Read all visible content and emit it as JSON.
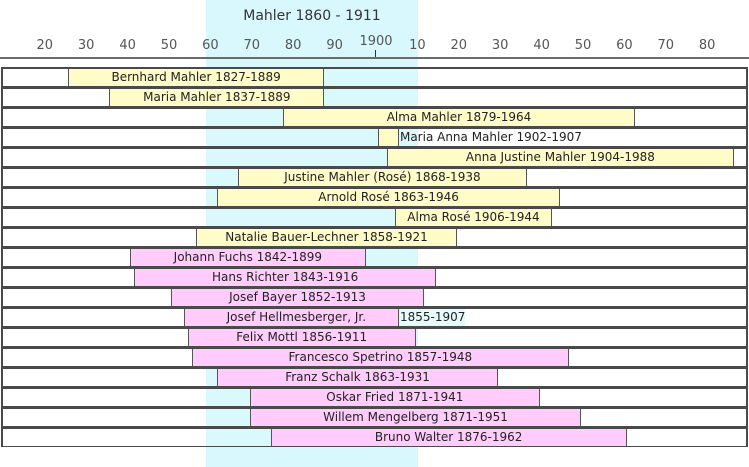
{
  "colors": {
    "highlight_band": "#d9f8fd",
    "family_bar": "#fffcc8",
    "musician_bar": "#ffccfc",
    "row_border": "#4a4a4a"
  },
  "chart_data": {
    "type": "timeline",
    "title": "Mahler  1860 - 1911",
    "highlight": {
      "start": 1860,
      "end": 1911
    },
    "x_range": [
      1811,
      1992
    ],
    "tick_labels": [
      {
        "year": 1820,
        "label": "20"
      },
      {
        "year": 1830,
        "label": "30"
      },
      {
        "year": 1840,
        "label": "40"
      },
      {
        "year": 1850,
        "label": "50"
      },
      {
        "year": 1860,
        "label": "60"
      },
      {
        "year": 1870,
        "label": "70"
      },
      {
        "year": 1880,
        "label": "80"
      },
      {
        "year": 1890,
        "label": "90"
      },
      {
        "year": 1900,
        "label": "1900"
      },
      {
        "year": 1910,
        "label": "10"
      },
      {
        "year": 1920,
        "label": "20"
      },
      {
        "year": 1930,
        "label": "30"
      },
      {
        "year": 1940,
        "label": "40"
      },
      {
        "year": 1950,
        "label": "50"
      },
      {
        "year": 1960,
        "label": "60"
      },
      {
        "year": 1970,
        "label": "70"
      },
      {
        "year": 1980,
        "label": "80"
      }
    ],
    "people": [
      {
        "label": "Bernhard Mahler 1827-1889",
        "start": 1827,
        "end": 1889,
        "group": "family"
      },
      {
        "label": "Maria Mahler 1837-1889",
        "start": 1837,
        "end": 1889,
        "group": "family"
      },
      {
        "label": "Alma Mahler 1879-1964",
        "start": 1879,
        "end": 1964,
        "group": "family"
      },
      {
        "label": "Maria Anna Mahler 1902-1907",
        "start": 1902,
        "end": 1907,
        "group": "family",
        "overflow": true
      },
      {
        "label": "Anna Justine Mahler 1904-1988",
        "start": 1904,
        "end": 1988,
        "group": "family"
      },
      {
        "label": "Justine Mahler (Rosé) 1868-1938",
        "start": 1868,
        "end": 1938,
        "group": "family"
      },
      {
        "label": "Arnold Rosé 1863-1946",
        "start": 1863,
        "end": 1946,
        "group": "family"
      },
      {
        "label": "Alma Rosé 1906-1944",
        "start": 1906,
        "end": 1944,
        "group": "family"
      },
      {
        "label": "Natalie Bauer-Lechner 1858-1921",
        "start": 1858,
        "end": 1921,
        "group": "family"
      },
      {
        "label": "Johann Fuchs 1842-1899",
        "start": 1842,
        "end": 1899,
        "group": "musician"
      },
      {
        "label": "Hans Richter 1843-1916",
        "start": 1843,
        "end": 1916,
        "group": "musician"
      },
      {
        "label": "Josef Bayer 1852-1913",
        "start": 1852,
        "end": 1913,
        "group": "musician"
      },
      {
        "label": "Josef Hellmesberger, Jr.",
        "after_label": "1855-1907",
        "start": 1855,
        "end": 1907,
        "group": "musician"
      },
      {
        "label": "Felix Mottl 1856-1911",
        "start": 1856,
        "end": 1911,
        "group": "musician"
      },
      {
        "label": "Francesco Spetrino 1857-1948",
        "start": 1857,
        "end": 1948,
        "group": "musician"
      },
      {
        "label": "Franz Schalk 1863-1931",
        "start": 1863,
        "end": 1931,
        "group": "musician"
      },
      {
        "label": "Oskar Fried 1871-1941",
        "start": 1871,
        "end": 1941,
        "group": "musician"
      },
      {
        "label": "Willem Mengelberg 1871-1951",
        "start": 1871,
        "end": 1951,
        "group": "musician"
      },
      {
        "label": "Bruno Walter 1876-1962",
        "start": 1876,
        "end": 1962,
        "group": "musician"
      }
    ]
  }
}
